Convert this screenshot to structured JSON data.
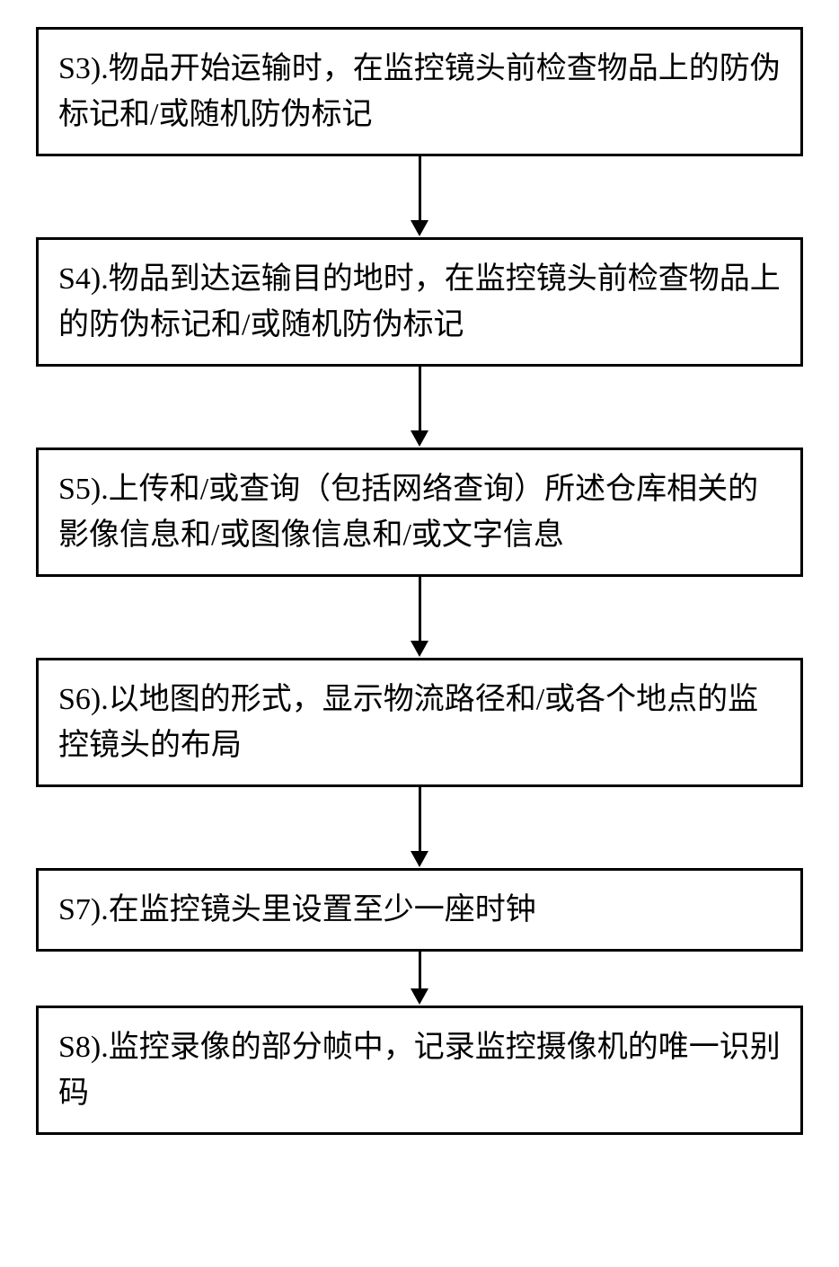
{
  "flowchart": {
    "type": "flowchart",
    "direction": "vertical",
    "box_border_color": "#000000",
    "box_border_width": 3,
    "box_background_color": "#ffffff",
    "text_color": "#000000",
    "font_size": 34,
    "font_family": "SimSun",
    "arrow_color": "#000000",
    "arrow_width": 3,
    "steps": [
      {
        "id": "s3",
        "label": "S3).物品开始运输时，在监控镜头前检查物品上的防伪标记和/或随机防伪标记"
      },
      {
        "id": "s4",
        "label": "S4).物品到达运输目的地时，在监控镜头前检查物品上的防伪标记和/或随机防伪标记"
      },
      {
        "id": "s5",
        "label": "S5).上传和/或查询（包括网络查询）所述仓库相关的影像信息和/或图像信息和/或文字信息"
      },
      {
        "id": "s6",
        "label": "S6).以地图的形式，显示物流路径和/或各个地点的监控镜头的布局"
      },
      {
        "id": "s7",
        "label": "S7).在监控镜头里设置至少一座时钟"
      },
      {
        "id": "s8",
        "label": "S8).监控录像的部分帧中，记录监控摄像机的唯一识别码"
      }
    ]
  }
}
